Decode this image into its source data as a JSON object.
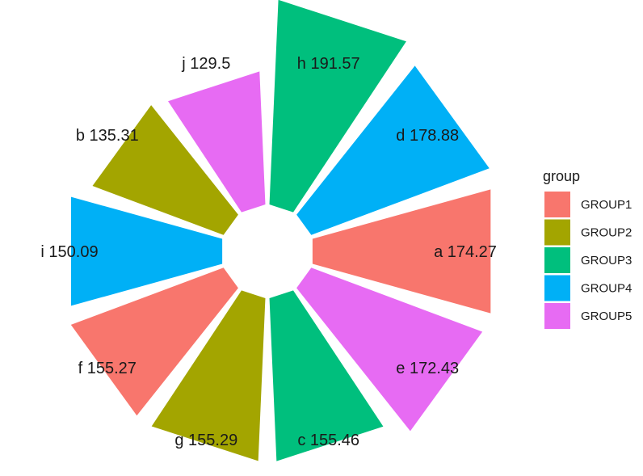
{
  "chart_data": {
    "type": "bar",
    "subtype": "polar-bar",
    "categories": [
      "h",
      "d",
      "a",
      "e",
      "c",
      "g",
      "f",
      "i",
      "b",
      "j"
    ],
    "values": [
      191.57,
      178.88,
      174.27,
      172.43,
      155.46,
      155.29,
      155.27,
      150.09,
      135.31,
      129.5
    ],
    "groups": [
      "GROUP3",
      "GROUP4",
      "GROUP1",
      "GROUP5",
      "GROUP3",
      "GROUP2",
      "GROUP1",
      "GROUP4",
      "GROUP2",
      "GROUP5"
    ],
    "data_labels": [
      "h 191.57",
      "d 178.88",
      "a 174.27",
      "e 172.43",
      "c 155.46",
      "g 155.29",
      "f 155.27",
      "i 150.09",
      "b 135.31",
      "j 129.5"
    ],
    "legend": {
      "title": "group",
      "placement": "right",
      "items": [
        {
          "name": "GROUP1",
          "color": "#F8766D"
        },
        {
          "name": "GROUP2",
          "color": "#A3A500"
        },
        {
          "name": "GROUP3",
          "color": "#00BF7D"
        },
        {
          "name": "GROUP4",
          "color": "#00B0F6"
        },
        {
          "name": "GROUP5",
          "color": "#E76BF3"
        }
      ]
    },
    "grid": false
  }
}
